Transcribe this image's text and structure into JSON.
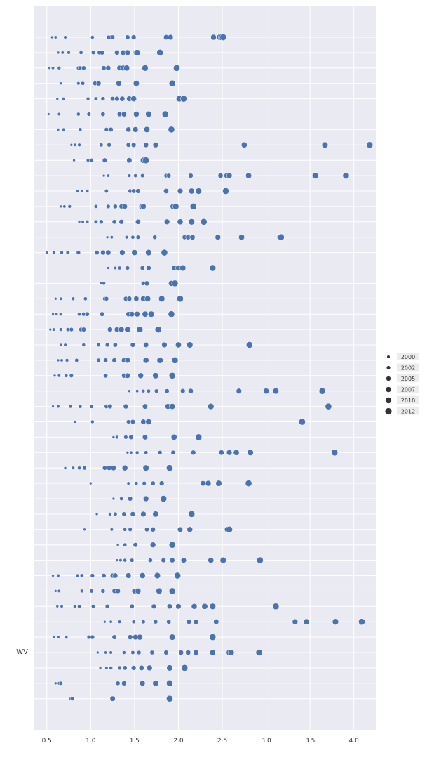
{
  "chart_data": {
    "type": "scatter",
    "xlabel": "",
    "ylabel": "",
    "xlim": [
      0.35,
      4.25
    ],
    "xticks": [
      0.5,
      1.0,
      1.5,
      2.0,
      2.5,
      3.0,
      3.5,
      4.0
    ],
    "xtick_labels": [
      "0.5",
      "1.0",
      "1.5",
      "2.0",
      "2.5",
      "3.0",
      "3.5",
      "4.0"
    ],
    "grid": true,
    "legend": {
      "title": "",
      "placement": "right",
      "entries": [
        {
          "label": "2000",
          "size_value": 2000
        },
        {
          "label": "2002",
          "size_value": 2002
        },
        {
          "label": "2005",
          "size_value": 2005
        },
        {
          "label": "2007",
          "size_value": 2007
        },
        {
          "label": "2010",
          "size_value": 2010
        },
        {
          "label": "2012",
          "size_value": 2012
        }
      ]
    },
    "marker_color": "#4c72b0",
    "background_color": "#eaeaf2",
    "rows": [
      {
        "label": "",
        "x": [
          0.56,
          0.6,
          0.71,
          1.02,
          1.2,
          1.23,
          1.25,
          1.42,
          1.49,
          1.86,
          1.91,
          2.4,
          2.47,
          2.49,
          2.51
        ]
      },
      {
        "label": "",
        "x": [
          0.63,
          0.68,
          0.75,
          0.89,
          1.03,
          1.1,
          1.13,
          1.3,
          1.37,
          1.42,
          1.52,
          1.53,
          1.79
        ]
      },
      {
        "label": "",
        "x": [
          0.53,
          0.57,
          0.64,
          0.86,
          0.88,
          0.92,
          1.15,
          1.2,
          1.33,
          1.37,
          1.41,
          1.62,
          1.98
        ]
      },
      {
        "label": "",
        "x": [
          0.66,
          0.86,
          0.91,
          1.05,
          1.09,
          1.32,
          1.52,
          1.93
        ]
      },
      {
        "label": "",
        "x": [
          0.62,
          0.69,
          0.97,
          1.06,
          1.14,
          1.25,
          1.3,
          1.36,
          1.44,
          1.49,
          2.01,
          2.06
        ]
      },
      {
        "label": "",
        "x": [
          0.52,
          0.64,
          0.86,
          0.98,
          1.14,
          1.33,
          1.38,
          1.52,
          1.66,
          1.85
        ]
      },
      {
        "label": "",
        "x": [
          0.63,
          0.69,
          0.88,
          1.18,
          1.23,
          1.43,
          1.51,
          1.64,
          1.92
        ]
      },
      {
        "label": "",
        "x": [
          0.78,
          0.82,
          0.87,
          1.12,
          1.21,
          1.43,
          1.49,
          1.63,
          1.74,
          2.75,
          3.67,
          4.18
        ]
      },
      {
        "label": "",
        "x": [
          0.81,
          0.97,
          1.01,
          1.16,
          1.44,
          1.6,
          1.63
        ]
      },
      {
        "label": "",
        "x": [
          1.15,
          1.2,
          1.44,
          1.51,
          1.59,
          1.86,
          1.89,
          2.14,
          2.48,
          2.55,
          2.58,
          2.8,
          3.56,
          3.91
        ]
      },
      {
        "label": "",
        "x": [
          0.85,
          0.9,
          0.96,
          1.18,
          1.45,
          1.49,
          1.54,
          1.86,
          2.02,
          2.15,
          2.23,
          2.54
        ]
      },
      {
        "label": "",
        "x": [
          0.66,
          0.7,
          0.76,
          1.06,
          1.2,
          1.28,
          1.35,
          1.39,
          1.58,
          1.6,
          1.94,
          1.97,
          2.17
        ]
      },
      {
        "label": "",
        "x": [
          0.87,
          0.91,
          0.96,
          1.06,
          1.12,
          1.27,
          1.35,
          1.54,
          1.87,
          2.02,
          2.15,
          2.29
        ]
      },
      {
        "label": "",
        "x": [
          1.19,
          1.24,
          1.41,
          1.48,
          1.54,
          1.73,
          2.07,
          2.11,
          2.16,
          2.45,
          2.72,
          3.16,
          3.17
        ]
      },
      {
        "label": "",
        "x": [
          0.5,
          0.58,
          0.67,
          0.74,
          0.86,
          1.07,
          1.14,
          1.2,
          1.36,
          1.5,
          1.66,
          1.84
        ]
      },
      {
        "label": "",
        "x": [
          1.2,
          1.28,
          1.33,
          1.42,
          1.59,
          1.66,
          1.95,
          2.0,
          2.05,
          2.39
        ]
      },
      {
        "label": "",
        "x": [
          1.12,
          1.15,
          1.6,
          1.64,
          1.92,
          1.96
        ]
      },
      {
        "label": "",
        "x": [
          0.6,
          0.66,
          0.8,
          0.94,
          1.16,
          1.18,
          1.4,
          1.44,
          1.52,
          1.6,
          1.65,
          1.81,
          2.02
        ]
      },
      {
        "label": "",
        "x": [
          0.57,
          0.61,
          0.66,
          0.87,
          0.92,
          0.96,
          1.13,
          1.43,
          1.47,
          1.53,
          1.62,
          1.69,
          1.92
        ]
      },
      {
        "label": "",
        "x": [
          0.54,
          0.58,
          0.66,
          0.74,
          0.78,
          0.89,
          0.92,
          1.22,
          1.3,
          1.35,
          1.42,
          1.56,
          1.77
        ]
      },
      {
        "label": "",
        "x": [
          0.66,
          0.71,
          0.92,
          1.09,
          1.19,
          1.28,
          1.48,
          1.63,
          1.84,
          2.0,
          2.13,
          2.81
        ]
      },
      {
        "label": "",
        "x": [
          0.63,
          0.67,
          0.73,
          0.84,
          1.09,
          1.17,
          1.27,
          1.38,
          1.42,
          1.63,
          1.79,
          1.96
        ]
      },
      {
        "label": "",
        "x": [
          0.59,
          0.64,
          0.72,
          0.78,
          1.17,
          1.38,
          1.42,
          1.57,
          1.74,
          1.93
        ]
      },
      {
        "label": "",
        "x": [
          1.44,
          1.53,
          1.6,
          1.66,
          1.75,
          1.87,
          2.05,
          2.14,
          2.69,
          3.0,
          3.11,
          3.64
        ]
      },
      {
        "label": "",
        "x": [
          0.57,
          0.63,
          0.77,
          0.88,
          1.01,
          1.18,
          1.22,
          1.4,
          1.62,
          1.88,
          1.93,
          2.37,
          3.71
        ]
      },
      {
        "label": "",
        "x": [
          0.82,
          1.02,
          1.43,
          1.48,
          1.6,
          1.66,
          3.41
        ]
      },
      {
        "label": "",
        "x": [
          1.26,
          1.3,
          1.4,
          1.46,
          1.62,
          1.95,
          2.23
        ]
      },
      {
        "label": "",
        "x": [
          1.42,
          1.46,
          1.53,
          1.63,
          1.79,
          1.94,
          2.17,
          2.49,
          2.58,
          2.66,
          2.82,
          3.78
        ]
      },
      {
        "label": "",
        "x": [
          0.71,
          0.8,
          0.87,
          0.93,
          1.16,
          1.21,
          1.26,
          1.39,
          1.63,
          1.9
        ]
      },
      {
        "label": "",
        "x": [
          1.0,
          1.43,
          1.52,
          1.61,
          1.71,
          1.81,
          2.28,
          2.34,
          2.46,
          2.8
        ]
      },
      {
        "label": "",
        "x": [
          1.26,
          1.35,
          1.45,
          1.63,
          1.83
        ]
      },
      {
        "label": "",
        "x": [
          1.07,
          1.22,
          1.28,
          1.38,
          1.48,
          1.6,
          1.74,
          2.15
        ]
      },
      {
        "label": "",
        "x": [
          0.93,
          1.24,
          1.39,
          1.45,
          1.64,
          1.71,
          2.02,
          2.13,
          2.56,
          2.58
        ]
      },
      {
        "label": "",
        "x": [
          1.31,
          1.39,
          1.51,
          1.71,
          1.93
        ]
      },
      {
        "label": "",
        "x": [
          1.3,
          1.34,
          1.39,
          1.47,
          1.68,
          1.83,
          1.93,
          2.06,
          2.37,
          2.51,
          2.93
        ]
      },
      {
        "label": "",
        "x": [
          0.57,
          0.63,
          0.85,
          0.9,
          1.02,
          1.15,
          1.25,
          1.28,
          1.43,
          1.59,
          1.76,
          1.99
        ]
      },
      {
        "label": "",
        "x": [
          0.6,
          0.64,
          0.9,
          1.01,
          1.14,
          1.27,
          1.31,
          1.5,
          1.54,
          1.78,
          1.93
        ]
      },
      {
        "label": "",
        "x": [
          0.62,
          0.67,
          0.82,
          0.87,
          1.03,
          1.19,
          1.47,
          1.72,
          1.9,
          2.0,
          2.18,
          2.3,
          2.39,
          3.11
        ]
      },
      {
        "label": "",
        "x": [
          1.16,
          1.23,
          1.33,
          1.49,
          1.6,
          1.74,
          1.89,
          2.12,
          2.2,
          2.43,
          3.33,
          3.46,
          3.79,
          4.09
        ]
      },
      {
        "label": "",
        "x": [
          0.58,
          0.63,
          0.72,
          0.98,
          1.02,
          1.27,
          1.45,
          1.51,
          1.56,
          1.93,
          2.39
        ]
      },
      {
        "label": "WV",
        "x": [
          1.08,
          1.17,
          1.23,
          1.38,
          1.48,
          1.55,
          1.7,
          1.86,
          2.03,
          2.11,
          2.2,
          2.39,
          2.58,
          2.6,
          2.92
        ]
      },
      {
        "label": "",
        "x": [
          1.11,
          1.18,
          1.23,
          1.33,
          1.39,
          1.49,
          1.58,
          1.67,
          1.9,
          2.07
        ]
      },
      {
        "label": "",
        "x": [
          0.6,
          0.64,
          0.66,
          1.31,
          1.38,
          1.59,
          1.74,
          1.9
        ]
      },
      {
        "label": "",
        "x": [
          0.77,
          0.79,
          1.25,
          1.9
        ]
      }
    ]
  }
}
